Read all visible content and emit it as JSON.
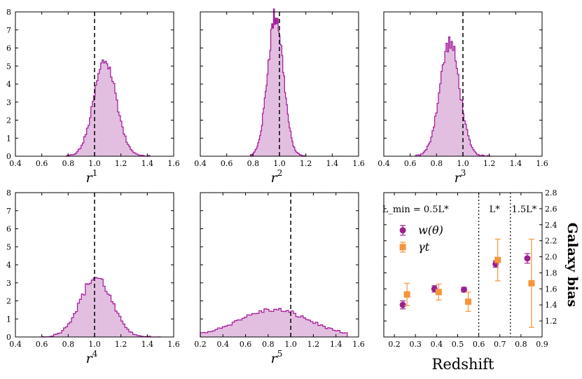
{
  "chart_data": [
    {
      "type": "histogram",
      "xlabel_base": "r",
      "xlabel_sup": "1",
      "xlim": [
        0.4,
        1.6
      ],
      "ylim": [
        0,
        8
      ],
      "xticks": [
        "0.4",
        "0.6",
        "0.8",
        "1.0",
        "1.2",
        "1.4",
        "1.6"
      ],
      "yticks": [
        "0",
        "1",
        "2",
        "3",
        "4",
        "5",
        "6",
        "7",
        "8"
      ],
      "reference_line": 1.0,
      "distribution": {
        "center": 1.08,
        "sigma": 0.085,
        "peak": 5.3
      },
      "range": [
        0.78,
        1.42
      ]
    },
    {
      "type": "histogram",
      "xlabel_base": "r",
      "xlabel_sup": "2",
      "xlim": [
        0.4,
        1.6
      ],
      "ylim": [
        0,
        8
      ],
      "xticks": [
        "0.4",
        "0.6",
        "0.8",
        "1.0",
        "1.2",
        "1.4",
        "1.6"
      ],
      "yticks": [
        "0",
        "1",
        "2",
        "3",
        "4",
        "5",
        "6",
        "7",
        "8"
      ],
      "reference_line": 1.0,
      "distribution": {
        "center": 0.97,
        "sigma": 0.06,
        "peak": 7.8
      },
      "range": [
        0.78,
        1.2
      ]
    },
    {
      "type": "histogram",
      "xlabel_base": "r",
      "xlabel_sup": "3",
      "xlim": [
        0.4,
        1.6
      ],
      "ylim": [
        0,
        8
      ],
      "xticks": [
        "0.4",
        "0.6",
        "0.8",
        "1.0",
        "1.2",
        "1.4",
        "1.6"
      ],
      "yticks": [
        "0",
        "1",
        "2",
        "3",
        "4",
        "5",
        "6",
        "7",
        "8"
      ],
      "reference_line": 1.0,
      "distribution": {
        "center": 0.9,
        "sigma": 0.075,
        "peak": 6.3
      },
      "range": [
        0.64,
        1.22
      ]
    },
    {
      "type": "histogram",
      "xlabel_base": "r",
      "xlabel_sup": "4",
      "xlim": [
        0.4,
        1.6
      ],
      "ylim": [
        0,
        8
      ],
      "xticks": [
        "0.4",
        "0.6",
        "0.8",
        "1.0",
        "1.2",
        "1.4",
        "1.6"
      ],
      "yticks": [
        "0",
        "1",
        "2",
        "3",
        "4",
        "5",
        "6",
        "7",
        "8"
      ],
      "reference_line": 1.0,
      "distribution": {
        "center": 1.01,
        "sigma": 0.12,
        "peak": 3.3
      },
      "range": [
        0.6,
        1.5
      ]
    },
    {
      "type": "histogram",
      "xlabel_base": "r",
      "xlabel_sup": "5",
      "xlim": [
        0.2,
        1.6
      ],
      "ylim": [
        0,
        8
      ],
      "xticks": [
        "0.2",
        "0.4",
        "0.6",
        "0.8",
        "1.0",
        "1.2",
        "1.4",
        "1.6"
      ],
      "yticks": [
        "0",
        "1",
        "2",
        "3",
        "4",
        "5",
        "6",
        "7",
        "8"
      ],
      "reference_line": 1.0,
      "distribution": {
        "center": 0.85,
        "sigma": 0.32,
        "peak": 1.5
      },
      "range": [
        0.2,
        1.5
      ]
    },
    {
      "type": "scatter",
      "xlabel": "Redshift",
      "ylabel": "Galaxy bias",
      "xlim": [
        0.15,
        0.9
      ],
      "ylim": [
        1.0,
        2.8
      ],
      "xticks": [
        "0.2",
        "0.3",
        "0.4",
        "0.5",
        "0.6",
        "0.7",
        "0.8",
        "0.9"
      ],
      "yticks": [
        "1.2",
        "1.4",
        "1.6",
        "1.8",
        "2.0",
        "2.2",
        "2.4",
        "2.6",
        "2.8"
      ],
      "dividers": [
        0.6,
        0.75
      ],
      "annotations": [
        {
          "text": "L_min = 0.5L*",
          "x": 0.3,
          "y": 2.6
        },
        {
          "text": "L*",
          "x": 0.675,
          "y": 2.6
        },
        {
          "text": "1.5L*",
          "x": 0.815,
          "y": 2.6
        }
      ],
      "series": [
        {
          "name": "w(θ)",
          "color": "#9a1f8f",
          "marker": "circle",
          "points": [
            {
              "x": 0.24,
              "y": 1.4,
              "err": 0.05
            },
            {
              "x": 0.39,
              "y": 1.6,
              "err": 0.04
            },
            {
              "x": 0.53,
              "y": 1.59,
              "err": 0.03
            },
            {
              "x": 0.68,
              "y": 1.91,
              "err": 0.04
            },
            {
              "x": 0.83,
              "y": 1.98,
              "err": 0.06
            }
          ]
        },
        {
          "name": "γt",
          "color": "#f5953a",
          "marker": "square",
          "points": [
            {
              "x": 0.26,
              "y": 1.53,
              "err": 0.14
            },
            {
              "x": 0.41,
              "y": 1.56,
              "err": 0.1
            },
            {
              "x": 0.55,
              "y": 1.44,
              "err": 0.12
            },
            {
              "x": 0.69,
              "y": 1.96,
              "err": 0.26
            },
            {
              "x": 0.85,
              "y": 1.67,
              "err": 0.55
            }
          ]
        }
      ]
    }
  ],
  "colors": {
    "hist_line": "#a6209c",
    "hist_fill": "#e2bfe0",
    "ref_line": "#000000"
  }
}
